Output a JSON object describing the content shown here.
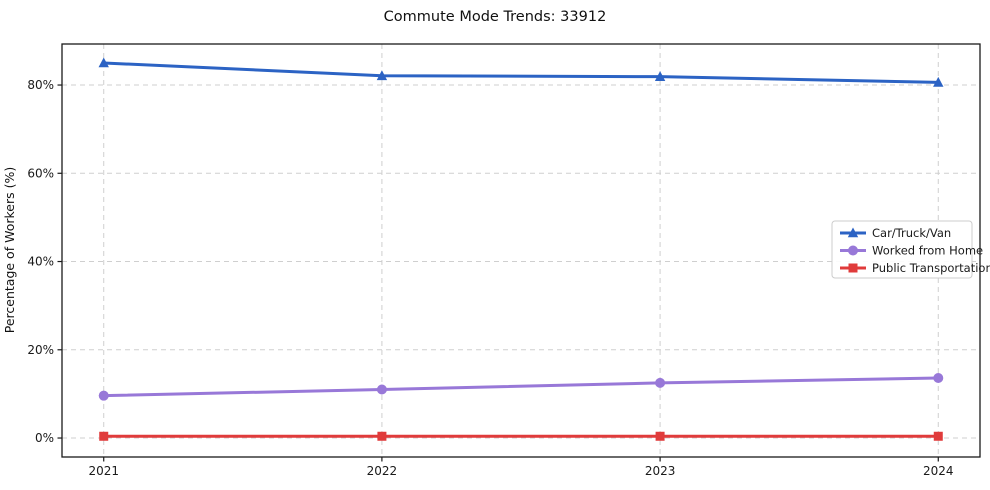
{
  "page": {
    "background_color": "#ffffff"
  },
  "chart_data": {
    "type": "line",
    "title": "Commute Mode Trends: 33912",
    "xlabel": "",
    "ylabel": "Percentage of Workers (%)",
    "x": [
      2021,
      2022,
      2023,
      2024
    ],
    "x_tick_labels": [
      "2021",
      "2022",
      "2023",
      "2024"
    ],
    "y_ticks": [
      0,
      20,
      40,
      60,
      80
    ],
    "y_tick_labels": [
      "0%",
      "20%",
      "40%",
      "60%",
      "80%"
    ],
    "xlim": [
      2020.85,
      2024.15
    ],
    "ylim": [
      -4.3,
      89.3
    ],
    "grid": true,
    "grid_style": "dashed",
    "legend_position": "center-right",
    "series": [
      {
        "name": "Car/Truck/Van",
        "marker": "triangle",
        "color": "#2c63c4",
        "values": [
          85.0,
          82.1,
          81.9,
          80.6
        ]
      },
      {
        "name": "Worked from Home",
        "marker": "circle",
        "color": "#9878d8",
        "values": [
          9.6,
          11.0,
          12.5,
          13.6
        ]
      },
      {
        "name": "Public Transportation",
        "marker": "square",
        "color": "#e03b3b",
        "values": [
          0.4,
          0.4,
          0.4,
          0.4
        ]
      }
    ]
  }
}
